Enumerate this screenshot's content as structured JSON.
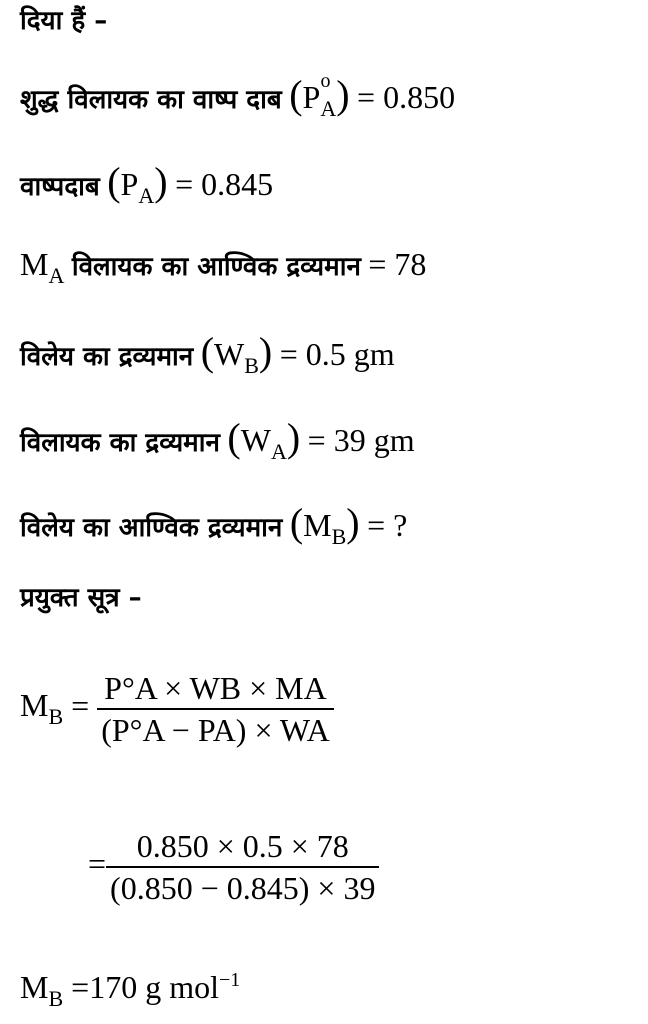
{
  "given_heading": "दिया हैं –",
  "lines": [
    {
      "text": "शुद्ध विलायक का वाष्प दाब",
      "symbol": "P",
      "sup": "o",
      "sub": "A",
      "value": "= 0.850"
    },
    {
      "text": "वाष्पदाब",
      "symbol": "P",
      "sub": "A",
      "value": "= 0.845"
    },
    {
      "symbol": "M",
      "sub": "A",
      "text": "विलायक का आण्विक द्रव्यमान",
      "value": "= 78"
    },
    {
      "text": "विलेय का द्रव्यमान",
      "symbol": "W",
      "sub": "B",
      "value": "= 0.5 gm"
    },
    {
      "text": "विलायक का द्रव्यमान",
      "symbol": "W",
      "sub": "A",
      "value": "= 39 gm"
    },
    {
      "text": "विलेय का आण्विक द्रव्यमान",
      "symbol": "M",
      "sub": "B",
      "value": "= ?"
    }
  ],
  "formula_heading": "प्रयुक्त सूत्र –",
  "formula": {
    "lhs": "M",
    "lhs_sub": "B",
    "numerator": "P°A × WB × MA",
    "denominator": "(P°A − PA) × WA"
  },
  "substitution": {
    "numerator": "0.850 × 0.5 × 78",
    "denominator": "(0.850 − 0.845) × 39"
  },
  "result": {
    "lhs": "M",
    "lhs_sub": "B",
    "value": "=170 g mol",
    "unit_sup": "−1"
  }
}
